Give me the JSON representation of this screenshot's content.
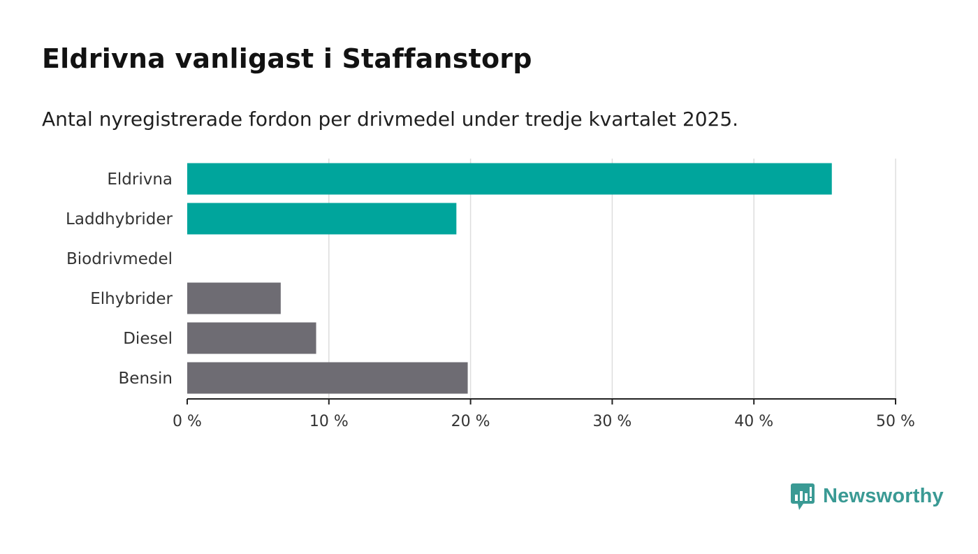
{
  "title": "Eldrivna vanligast i Staffanstorp",
  "subtitle": "Antal nyregistrerade fordon per drivmedel under tredje kvartalet 2025.",
  "brand": {
    "name": "Newsworthy",
    "color": "#3a9a94"
  },
  "colors": {
    "highlight": "#00a59c",
    "default": "#6e6c73",
    "grid": "#dddddd",
    "axis": "#222222"
  },
  "chart_data": {
    "type": "bar",
    "orientation": "horizontal",
    "categories": [
      "Eldrivna",
      "Laddhybrider",
      "Biodrivmedel",
      "Elhybrider",
      "Diesel",
      "Bensin"
    ],
    "values": [
      45.5,
      19.0,
      0,
      6.6,
      9.1,
      19.8
    ],
    "highlighted": [
      true,
      true,
      false,
      false,
      false,
      false
    ],
    "unit": "%",
    "xlim": [
      0,
      50
    ],
    "xticks": [
      0,
      10,
      20,
      30,
      40,
      50
    ],
    "xtick_labels": [
      "0 %",
      "10 %",
      "20 %",
      "30 %",
      "40 %",
      "50 %"
    ],
    "grid": true
  }
}
